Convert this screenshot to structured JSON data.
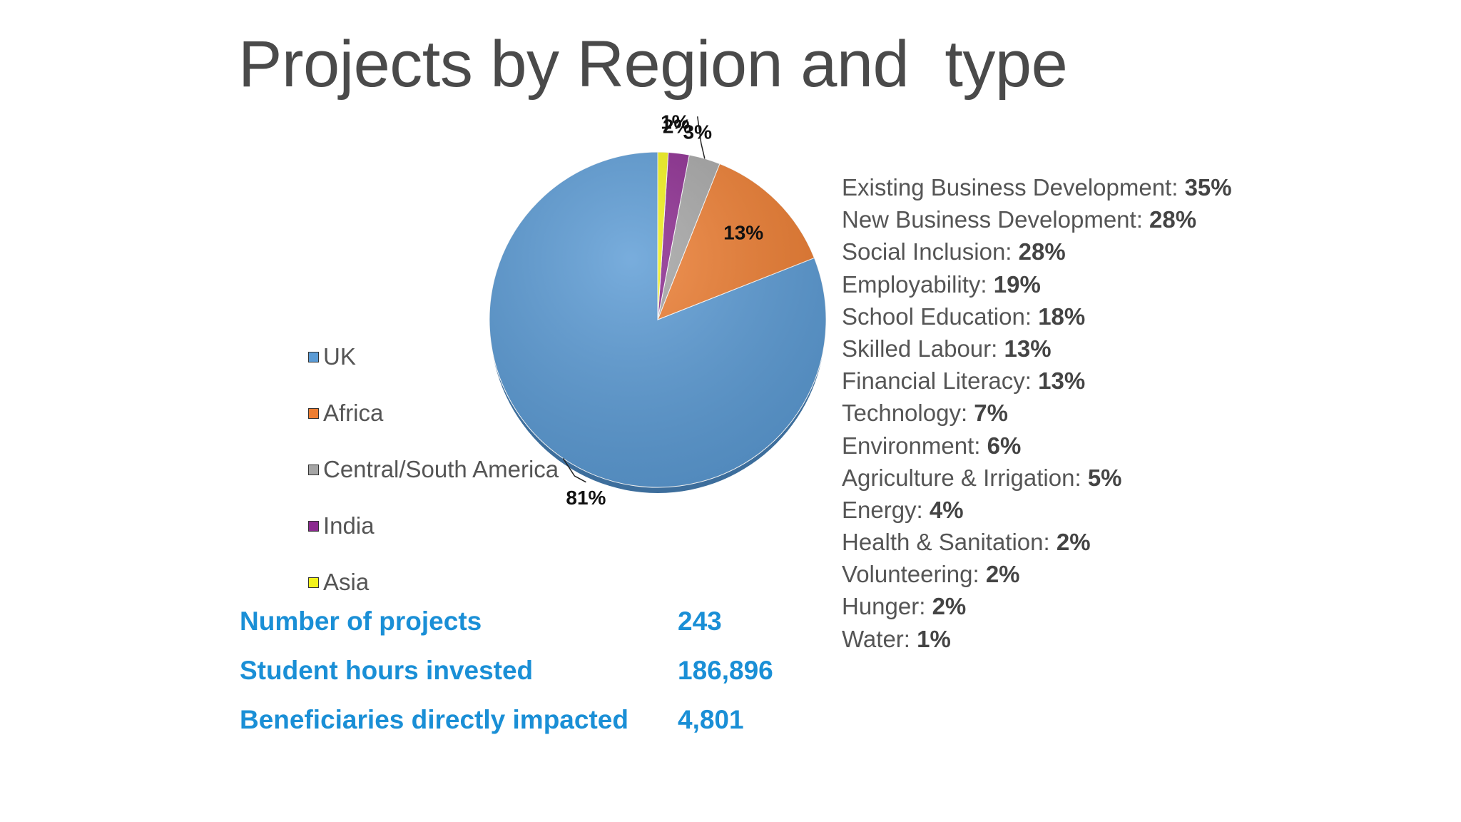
{
  "slide": {
    "title": "Projects by Region and  type"
  },
  "chart_data": {
    "type": "pie",
    "title": "",
    "legend_position": "left",
    "slices": [
      {
        "name": "UK",
        "value": 81,
        "label": "81%",
        "color": "#5b9bd5"
      },
      {
        "name": "Africa",
        "value": 13,
        "label": "13%",
        "color": "#ed7d31"
      },
      {
        "name": "Central/South America",
        "value": 3,
        "label": "3%",
        "color": "#a5a5a5"
      },
      {
        "name": "India",
        "value": 2,
        "label": "2%",
        "color": "#8b2a8f"
      },
      {
        "name": "Asia",
        "value": 1,
        "label": "1%",
        "color": "#f2f21a"
      }
    ]
  },
  "project_types": [
    {
      "name": "Existing Business Development: ",
      "pct": "35%"
    },
    {
      "name": "New Business Development: ",
      "pct": "28%"
    },
    {
      "name": "Social Inclusion: ",
      "pct": "28%"
    },
    {
      "name": "Employability: ",
      "pct": "19%"
    },
    {
      "name": "School Education: ",
      "pct": "18%"
    },
    {
      "name": "Skilled Labour: ",
      "pct": "13%"
    },
    {
      "name": "Financial Literacy: ",
      "pct": "13%"
    },
    {
      "name": "Technology: ",
      "pct": "7%"
    },
    {
      "name": "Environment: ",
      "pct": "6%"
    },
    {
      "name": "Agriculture & Irrigation: ",
      "pct": "5%"
    },
    {
      "name": "Energy: ",
      "pct": "4%"
    },
    {
      "name": "Health & Sanitation: ",
      "pct": "2%"
    },
    {
      "name": "Volunteering: ",
      "pct": "2%"
    },
    {
      "name": "Hunger: ",
      "pct": "2%"
    },
    {
      "name": "Water: ",
      "pct": "1%"
    }
  ],
  "stats": [
    {
      "label": "Number of projects",
      "value": "243"
    },
    {
      "label": "Student hours invested",
      "value": "186,896"
    },
    {
      "label": "Beneficiaries directly impacted",
      "value": "4,801"
    }
  ]
}
